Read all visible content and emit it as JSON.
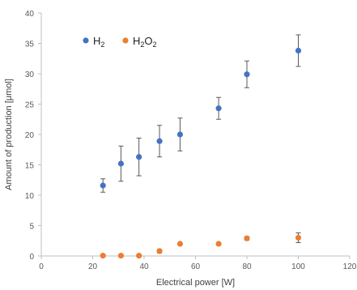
{
  "chart_data": {
    "type": "scatter",
    "title": "",
    "xlabel": "Electrical power [W]",
    "ylabel": "Amount of production [μmol]",
    "xlim": [
      0,
      120
    ],
    "ylim": [
      0,
      40
    ],
    "xticks": [
      "0",
      "20",
      "40",
      "60",
      "80",
      "100",
      "120"
    ],
    "yticks": [
      "0",
      "5",
      "10",
      "15",
      "20",
      "25",
      "30",
      "35",
      "40"
    ],
    "grid": false,
    "legend_position": "top-left",
    "series": [
      {
        "name": "H2",
        "legend_base": "H",
        "legend_sub": "2",
        "color": "#4472c4",
        "points": [
          {
            "x": 24,
            "y": 11.6,
            "err": 1.1
          },
          {
            "x": 31,
            "y": 15.2,
            "err": 2.9
          },
          {
            "x": 38,
            "y": 16.3,
            "err": 3.1
          },
          {
            "x": 46,
            "y": 18.9,
            "err": 2.6
          },
          {
            "x": 54,
            "y": 20.0,
            "err": 2.7
          },
          {
            "x": 69,
            "y": 24.3,
            "err": 1.8
          },
          {
            "x": 80,
            "y": 29.9,
            "err": 2.2
          },
          {
            "x": 100,
            "y": 33.8,
            "err": 2.6
          }
        ]
      },
      {
        "name": "H2O2",
        "legend_parts": [
          "H",
          "2",
          "O",
          "2"
        ],
        "color": "#ed7d31",
        "points": [
          {
            "x": 24,
            "y": 0.05,
            "err": 0.1
          },
          {
            "x": 31,
            "y": 0.05,
            "err": 0.1
          },
          {
            "x": 38,
            "y": 0.05,
            "err": 0.1
          },
          {
            "x": 46,
            "y": 0.8,
            "err": 0.3
          },
          {
            "x": 54,
            "y": 2.0,
            "err": 0.2
          },
          {
            "x": 69,
            "y": 2.0,
            "err": 0.2
          },
          {
            "x": 80,
            "y": 2.9,
            "err": 0.3
          },
          {
            "x": 100,
            "y": 3.0,
            "err": 0.8
          }
        ]
      }
    ]
  }
}
